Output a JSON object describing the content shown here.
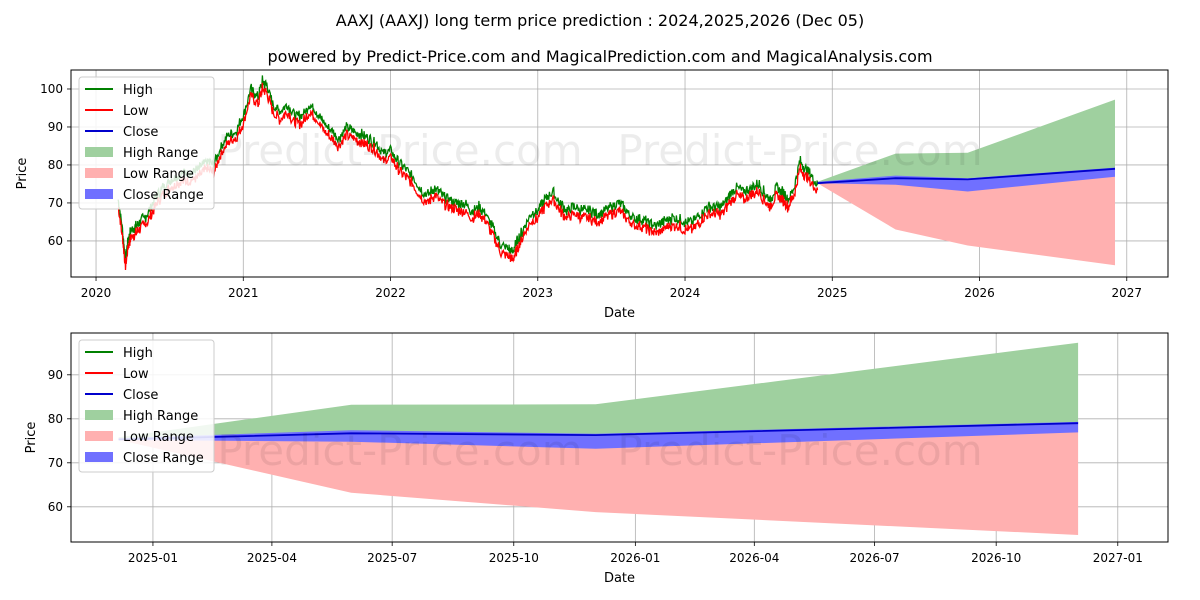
{
  "page": {
    "title": "AAXJ (AAXJ) long term price prediction : 2024,2025,2026 (Dec 05)",
    "subtitle": "powered by Predict-Price.com and MagicalPrediction.com and MagicalAnalysis.com",
    "watermark": "Predict-Price.com"
  },
  "colors": {
    "high": "#008000",
    "low": "#ff0000",
    "close": "#0000cc",
    "high_range": "#9fd09f",
    "low_range": "#ffb0b0",
    "close_range": "#7070ff"
  },
  "legend": [
    {
      "key": "high",
      "label": "High",
      "kind": "line"
    },
    {
      "key": "low",
      "label": "Low",
      "kind": "line"
    },
    {
      "key": "close",
      "label": "Close",
      "kind": "line"
    },
    {
      "key": "high_range",
      "label": "High Range",
      "kind": "patch"
    },
    {
      "key": "low_range",
      "label": "Low Range",
      "kind": "patch"
    },
    {
      "key": "close_range",
      "label": "Close Range",
      "kind": "patch"
    }
  ],
  "chart_data": [
    {
      "type": "line",
      "title": "AAXJ (AAXJ) long term price prediction : 2024,2025,2026 (Dec 05)",
      "xlabel": "Date",
      "ylabel": "Price",
      "grid": true,
      "legend_position": "upper-left",
      "x_unit": "year",
      "xlim": [
        2019.83,
        2027.28
      ],
      "ylim": [
        50.5,
        105
      ],
      "xticks": [
        2020,
        2021,
        2022,
        2023,
        2024,
        2025,
        2026,
        2027
      ],
      "xtick_labels": [
        "2020",
        "2021",
        "2022",
        "2023",
        "2024",
        "2025",
        "2026",
        "2027"
      ],
      "yticks": [
        60,
        70,
        80,
        90,
        100
      ],
      "ytick_labels": [
        "60",
        "70",
        "80",
        "90",
        "100"
      ],
      "history": {
        "x": [
          2020.15,
          2020.18,
          2020.2,
          2020.22,
          2020.24,
          2020.27,
          2020.3,
          2020.35,
          2020.4,
          2020.45,
          2020.5,
          2020.55,
          2020.6,
          2020.65,
          2020.7,
          2020.75,
          2020.8,
          2020.85,
          2020.9,
          2020.95,
          2021.0,
          2021.05,
          2021.1,
          2021.13,
          2021.16,
          2021.2,
          2021.25,
          2021.3,
          2021.35,
          2021.4,
          2021.45,
          2021.5,
          2021.55,
          2021.6,
          2021.65,
          2021.7,
          2021.75,
          2021.8,
          2021.85,
          2021.9,
          2021.95,
          2022.0,
          2022.05,
          2022.1,
          2022.15,
          2022.2,
          2022.25,
          2022.3,
          2022.35,
          2022.4,
          2022.45,
          2022.5,
          2022.55,
          2022.6,
          2022.65,
          2022.7,
          2022.75,
          2022.8,
          2022.83,
          2022.86,
          2022.9,
          2022.95,
          2023.0,
          2023.05,
          2023.1,
          2023.15,
          2023.2,
          2023.25,
          2023.3,
          2023.35,
          2023.4,
          2023.45,
          2023.5,
          2023.55,
          2023.6,
          2023.65,
          2023.7,
          2023.75,
          2023.8,
          2023.85,
          2023.9,
          2023.95,
          2024.0,
          2024.05,
          2024.1,
          2024.15,
          2024.2,
          2024.25,
          2024.3,
          2024.35,
          2024.4,
          2024.45,
          2024.5,
          2024.55,
          2024.58,
          2024.62,
          2024.66,
          2024.7,
          2024.74,
          2024.78,
          2024.82,
          2024.86,
          2024.9
        ],
        "y": [
          70,
          62,
          54,
          60,
          62,
          63,
          64,
          66,
          70,
          73,
          75,
          76,
          77,
          77,
          78,
          80,
          79,
          84,
          87,
          88,
          92,
          99,
          97,
          101,
          100,
          95,
          93,
          95,
          92,
          92,
          95,
          93,
          90,
          88,
          86,
          89,
          88,
          87,
          86,
          85,
          82,
          83,
          80,
          78,
          76,
          73,
          71,
          73,
          71,
          70,
          69,
          69,
          67,
          68,
          66,
          62,
          58,
          57,
          56,
          59,
          62,
          66,
          67,
          70,
          72,
          69,
          67,
          68,
          67,
          67,
          66,
          67,
          68,
          69,
          67,
          65,
          65,
          64,
          63,
          64,
          65,
          65,
          64,
          64,
          66,
          68,
          68,
          68,
          71,
          73,
          72,
          73,
          74,
          71,
          70,
          73,
          72,
          70,
          73,
          80,
          78,
          76,
          74
        ],
        "spread": 1.4
      },
      "forecast": {
        "x": [
          2024.9,
          2025.43,
          2025.92,
          2026.92
        ],
        "close": [
          75.2,
          76.5,
          76.2,
          79
        ],
        "close_range_low": [
          75.2,
          74.8,
          73,
          76.9
        ],
        "close_range_high": [
          75.6,
          77.2,
          76.5,
          79.3
        ],
        "high_range_low": [
          75.2,
          77,
          76.5,
          79
        ],
        "high_range_high": [
          75.6,
          83,
          83.2,
          97.2
        ],
        "low_range_low": [
          75.2,
          63,
          58.8,
          53.6
        ],
        "low_range_high": [
          75.6,
          76,
          76.2,
          79
        ]
      }
    },
    {
      "type": "area",
      "title": "",
      "xlabel": "Date",
      "ylabel": "Price",
      "grid": true,
      "legend_position": "upper-left",
      "x_unit": "day",
      "xlim": [
        -62,
        768
      ],
      "ylim": [
        52,
        99.5
      ],
      "xticks": [
        0,
        90,
        181,
        273,
        365,
        455,
        546,
        638,
        730
      ],
      "xtick_labels": [
        "2025-01",
        "2025-04",
        "2025-07",
        "2025-10",
        "2026-01",
        "2026-04",
        "2026-07",
        "2026-10",
        "2027-01"
      ],
      "yticks": [
        60,
        70,
        80,
        90
      ],
      "ytick_labels": [
        "60",
        "70",
        "80",
        "90"
      ],
      "forecast": {
        "x": [
          -26,
          150,
          335,
          700
        ],
        "close": [
          75.3,
          76.7,
          76.3,
          79
        ],
        "close_range_low": [
          75.2,
          74.8,
          73.2,
          76.9
        ],
        "close_range_high": [
          75.6,
          77.4,
          76.6,
          79.3
        ],
        "high_range_low": [
          75.2,
          77,
          76.5,
          79
        ],
        "high_range_high": [
          75.8,
          83.2,
          83.3,
          97.3
        ],
        "low_range_low": [
          75.2,
          63.2,
          58.8,
          53.6
        ],
        "low_range_high": [
          75.6,
          76,
          76.3,
          79
        ]
      }
    }
  ]
}
